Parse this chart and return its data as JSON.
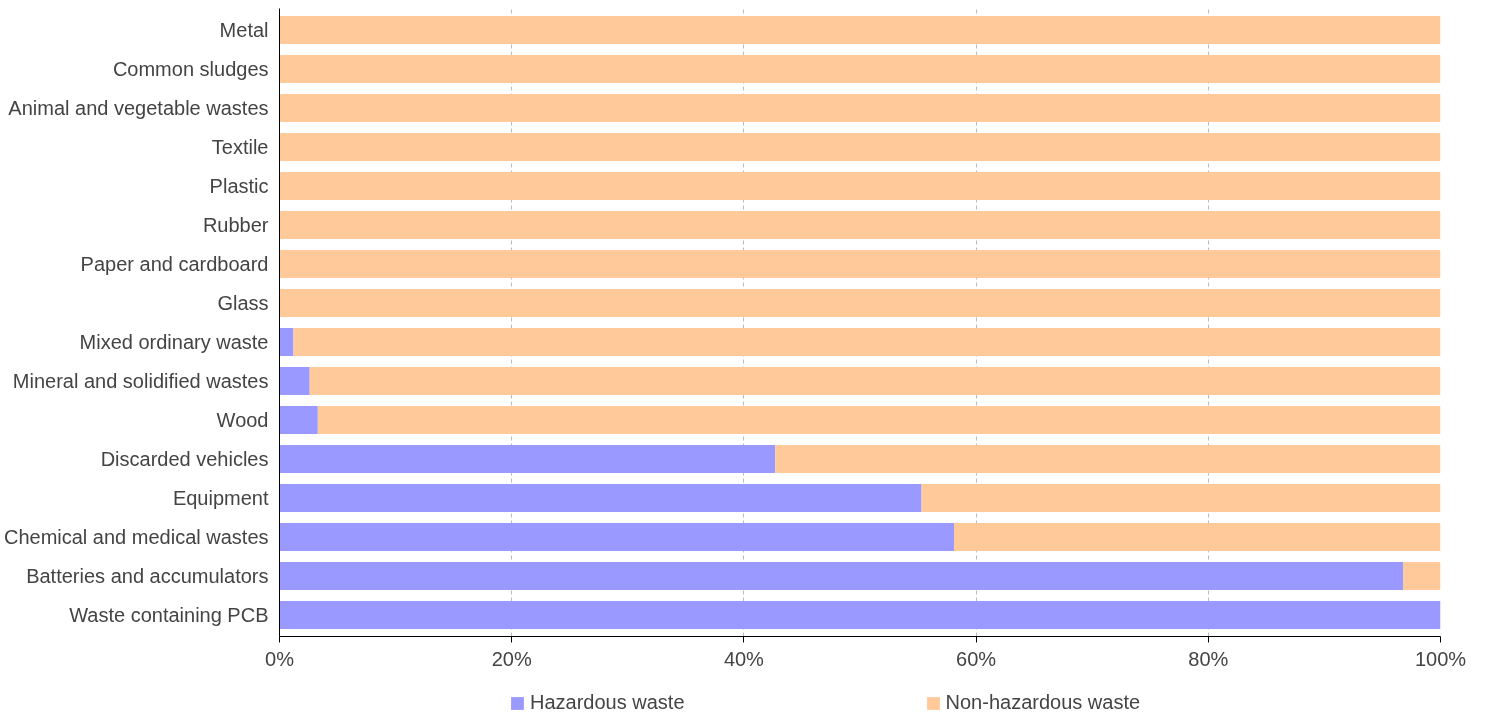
{
  "chart_data": {
    "type": "bar",
    "orientation": "horizontal",
    "stacked": true,
    "categories": [
      "Metal",
      "Common sludges",
      "Animal and vegetable wastes",
      "Textile",
      "Plastic",
      "Rubber",
      "Paper and cardboard",
      "Glass",
      "Mixed ordinary waste",
      "Mineral and solidified wastes",
      "Wood",
      "Discarded vehicles",
      "Equipment",
      "Chemical and medical wastes",
      "Batteries and accumulators",
      "Waste containing PCB"
    ],
    "series": [
      {
        "name": "Hazardous waste",
        "color": "#9999ff",
        "values": [
          0,
          0,
          0,
          0,
          0,
          0,
          0,
          0,
          1.2,
          2.6,
          3.3,
          42.7,
          55.3,
          58.1,
          96.8,
          100
        ]
      },
      {
        "name": "Non-hazardous waste",
        "color": "#ffc999",
        "values": [
          100,
          100,
          100,
          100,
          100,
          100,
          100,
          100,
          98.8,
          97.4,
          96.7,
          57.3,
          44.7,
          41.9,
          3.2,
          0
        ]
      }
    ],
    "xlim": [
      0,
      100
    ],
    "xticks": [
      {
        "value": 0,
        "label": "0%"
      },
      {
        "value": 20,
        "label": "20%"
      },
      {
        "value": 40,
        "label": "40%"
      },
      {
        "value": 60,
        "label": "60%"
      },
      {
        "value": 80,
        "label": "80%"
      },
      {
        "value": 100,
        "label": "100%"
      }
    ],
    "grid": "x",
    "legend": "bottom"
  }
}
